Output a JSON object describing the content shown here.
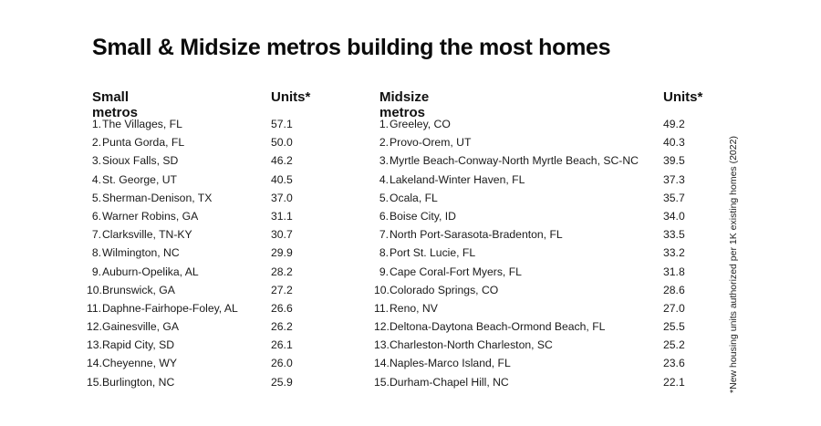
{
  "title": "Small & Midsize metros building the most homes",
  "footnote": "*New housing units authorized per 1K existing homes (2022)",
  "chart_data": [
    {
      "type": "table",
      "columns": [
        "Small metros",
        "Units*"
      ],
      "rows": [
        {
          "rank": "1.",
          "name": "The Villages, FL",
          "value": "57.1"
        },
        {
          "rank": "2.",
          "name": "Punta Gorda, FL",
          "value": "50.0"
        },
        {
          "rank": "3.",
          "name": "Sioux Falls, SD",
          "value": "46.2"
        },
        {
          "rank": "4.",
          "name": "St. George, UT",
          "value": "40.5"
        },
        {
          "rank": "5.",
          "name": "Sherman-Denison, TX",
          "value": "37.0"
        },
        {
          "rank": "6.",
          "name": "Warner Robins, GA",
          "value": "31.1"
        },
        {
          "rank": "7.",
          "name": "Clarksville, TN-KY",
          "value": "30.7"
        },
        {
          "rank": "8.",
          "name": "Wilmington, NC",
          "value": "29.9"
        },
        {
          "rank": "9.",
          "name": "Auburn-Opelika, AL",
          "value": "28.2"
        },
        {
          "rank": "10.",
          "name": "Brunswick, GA",
          "value": "27.2"
        },
        {
          "rank": "11.",
          "name": "Daphne-Fairhope-Foley, AL",
          "value": "26.6"
        },
        {
          "rank": "12.",
          "name": "Gainesville, GA",
          "value": "26.2"
        },
        {
          "rank": "13.",
          "name": "Rapid City, SD",
          "value": "26.1"
        },
        {
          "rank": "14.",
          "name": "Cheyenne, WY",
          "value": "26.0"
        },
        {
          "rank": "15.",
          "name": "Burlington, NC",
          "value": "25.9"
        }
      ]
    },
    {
      "type": "table",
      "columns": [
        "Midsize metros",
        "Units*"
      ],
      "rows": [
        {
          "rank": "1.",
          "name": "Greeley, CO",
          "value": "49.2"
        },
        {
          "rank": "2.",
          "name": "Provo-Orem, UT",
          "value": "40.3"
        },
        {
          "rank": "3.",
          "name": "Myrtle Beach-Conway-North Myrtle Beach, SC-NC",
          "value": "39.5"
        },
        {
          "rank": "4.",
          "name": "Lakeland-Winter Haven, FL",
          "value": "37.3"
        },
        {
          "rank": "5.",
          "name": "Ocala, FL",
          "value": "35.7"
        },
        {
          "rank": "6.",
          "name": "Boise City, ID",
          "value": "34.0"
        },
        {
          "rank": "7.",
          "name": "North Port-Sarasota-Bradenton, FL",
          "value": "33.5"
        },
        {
          "rank": "8.",
          "name": "Port St. Lucie, FL",
          "value": "33.2"
        },
        {
          "rank": "9.",
          "name": "Cape Coral-Fort Myers, FL",
          "value": "31.8"
        },
        {
          "rank": "10.",
          "name": "Colorado Springs, CO",
          "value": "28.6"
        },
        {
          "rank": "11.",
          "name": "Reno, NV",
          "value": "27.0"
        },
        {
          "rank": "12.",
          "name": "Deltona-Daytona Beach-Ormond Beach, FL",
          "value": "25.5"
        },
        {
          "rank": "13.",
          "name": "Charleston-North Charleston, SC",
          "value": "25.2"
        },
        {
          "rank": "14.",
          "name": "Naples-Marco Island, FL",
          "value": "23.6"
        },
        {
          "rank": "15.",
          "name": "Durham-Chapel Hill, NC",
          "value": "22.1"
        }
      ]
    }
  ]
}
